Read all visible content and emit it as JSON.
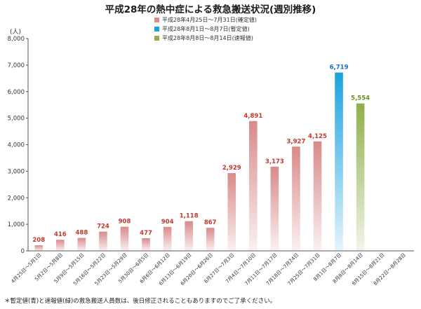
{
  "title": "平成28年の熱中症による救急搬送状況(週別推移)",
  "unit_label": "(人)",
  "legend": [
    {
      "label": "平成28年4月25日～7月31日(確定値)",
      "color": "#d98a8a"
    },
    {
      "label": "平成28年8月1日～8月7日(暫定値)",
      "color": "#1aa3e0"
    },
    {
      "label": "平成28年8月8日～8月14日(速報値)",
      "color": "#8fb04a"
    }
  ],
  "footnote": "＊暫定値(青)と速報値(緑)の救急搬送人員数は、後日修正されることもありますのでご了承ください。",
  "chart_data": {
    "type": "bar",
    "title": "平成28年の熱中症による救急搬送状況(週別推移)",
    "ylabel": "(人)",
    "ylim": [
      0,
      8000
    ],
    "yticks": [
      "0",
      "1,000",
      "2,000",
      "3,000",
      "4,000",
      "5,000",
      "6,000",
      "7,000",
      "8,000"
    ],
    "grid": false,
    "legend_position": "top-center",
    "categories": [
      "4月25日～5月1日",
      "5月2日～5月8日",
      "5月9日～5月15日",
      "5月16日～5月22日",
      "5月23日～5月29日",
      "5月30日～6月5日",
      "6月6日～6月12日",
      "6月13日～6月19日",
      "6月20日～6月26日",
      "6月27日～7月3日",
      "7月4日～7月10日",
      "7月11日～7月17日",
      "7月18日～7月24日",
      "7月25日～7月31日",
      "8月1日～8月7日",
      "8月8日～8月14日",
      "8月15日～8月21日",
      "8月22日～8月28日"
    ],
    "values": [
      208,
      416,
      488,
      724,
      908,
      477,
      904,
      1118,
      867,
      2929,
      4891,
      3173,
      3927,
      4125,
      6719,
      5554,
      null,
      null
    ],
    "value_labels": [
      "208",
      "416",
      "488",
      "724",
      "908",
      "477",
      "904",
      "1,118",
      "867",
      "2,929",
      "4,891",
      "3,173",
      "3,927",
      "4,125",
      "6,719",
      "5,554",
      "",
      ""
    ],
    "status": [
      "確定値",
      "確定値",
      "確定値",
      "確定値",
      "確定値",
      "確定値",
      "確定値",
      "確定値",
      "確定値",
      "確定値",
      "確定値",
      "確定値",
      "確定値",
      "確定値",
      "暫定値",
      "速報値",
      "",
      ""
    ],
    "colors": {
      "確定値": "#d98a8a",
      "暫定値": "#1aa3e0",
      "速報値": "#8fb04a"
    },
    "label_colors": {
      "確定値": "#c0392b",
      "暫定値": "#1a6fc0",
      "速報値": "#6b8e23"
    }
  }
}
